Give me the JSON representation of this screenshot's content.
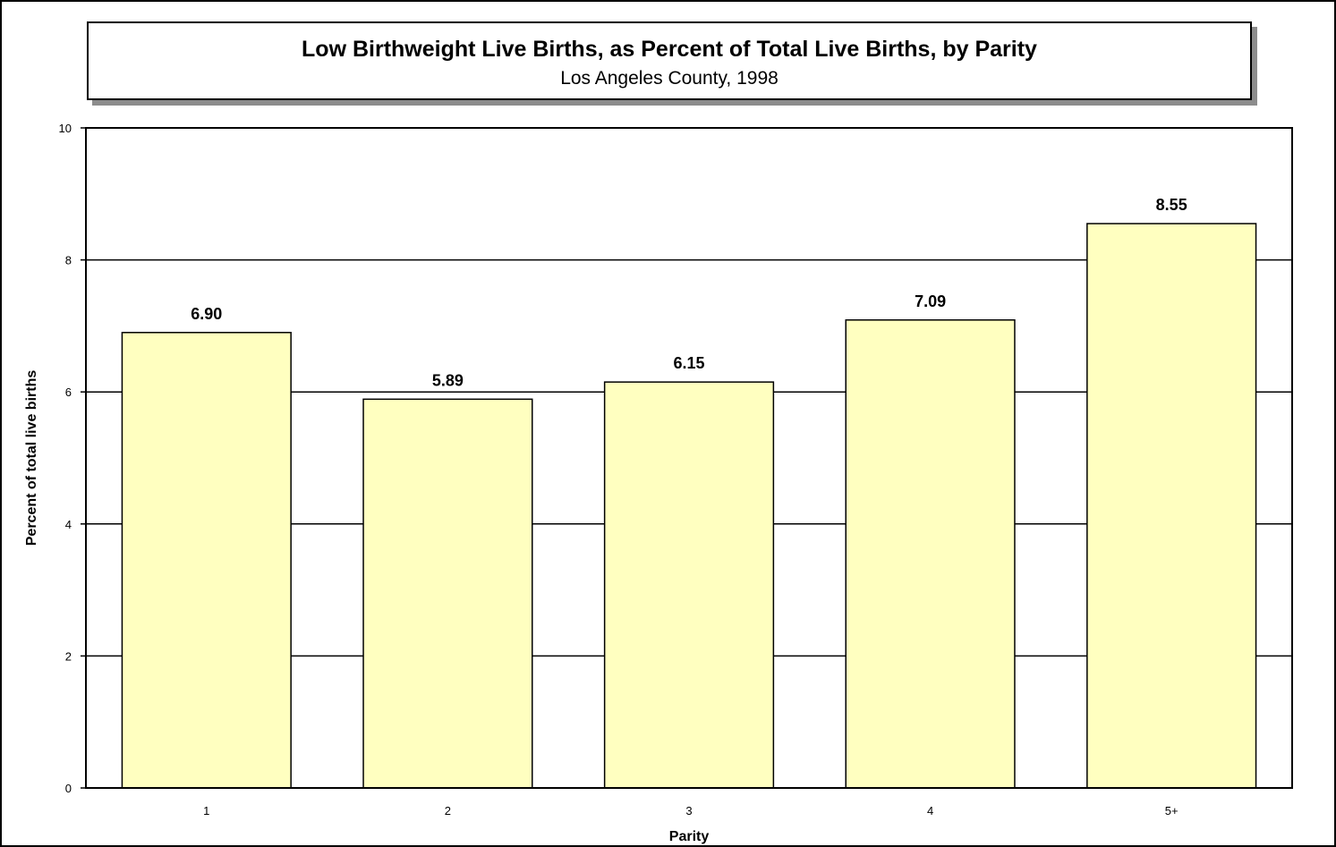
{
  "chart_data": {
    "type": "bar",
    "title": "Low Birthweight Live Births, as Percent of Total Live Births, by Parity",
    "subtitle": "Los Angeles County, 1998",
    "xlabel": "Parity",
    "ylabel": "Percent of total live births",
    "categories": [
      "1",
      "2",
      "3",
      "4",
      "5+"
    ],
    "values": [
      6.9,
      5.89,
      6.15,
      7.09,
      8.55
    ],
    "value_labels": [
      "6.90",
      "5.89",
      "6.15",
      "7.09",
      "8.55"
    ],
    "ylim": [
      0,
      10
    ],
    "yticks": [
      0,
      2,
      4,
      6,
      8,
      10
    ],
    "grid": true,
    "legend": "none",
    "bar_color": "#ffffc0"
  }
}
